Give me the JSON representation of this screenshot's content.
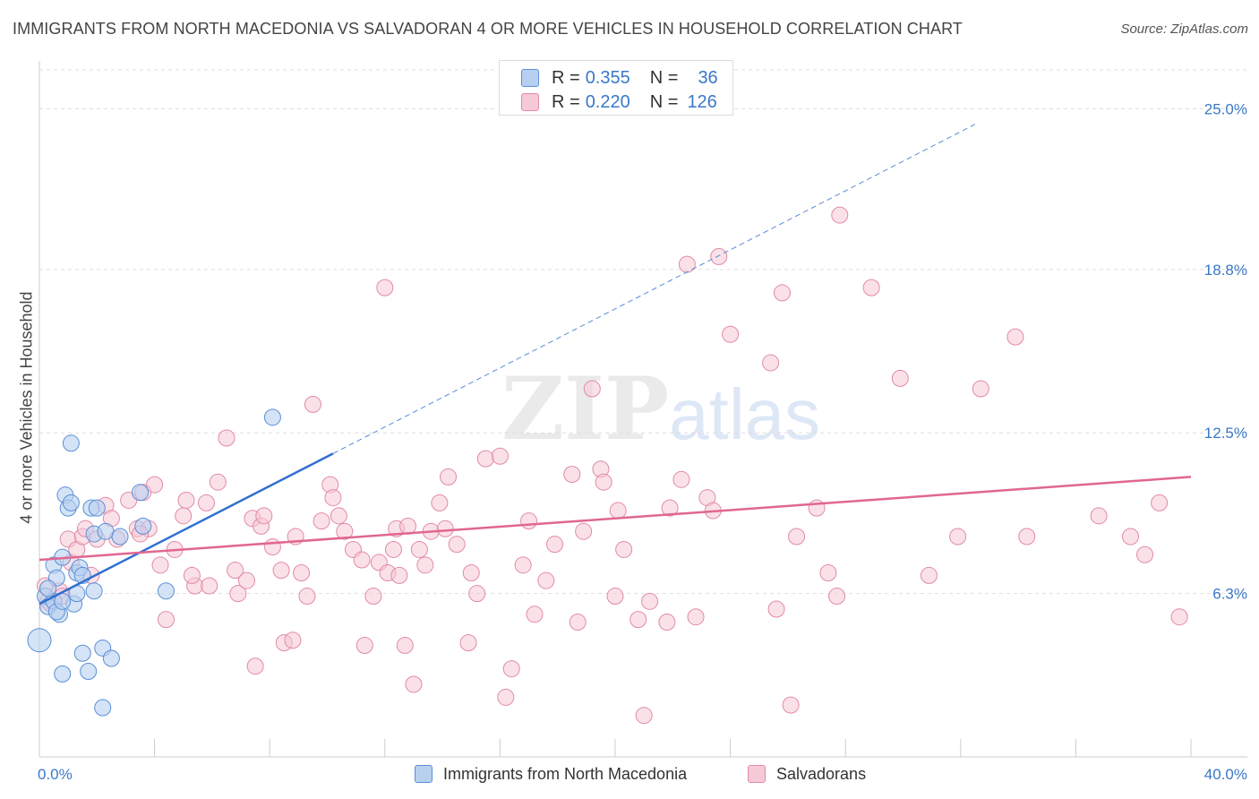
{
  "title": "IMMIGRANTS FROM NORTH MACEDONIA VS SALVADORAN 4 OR MORE VEHICLES IN HOUSEHOLD CORRELATION CHART",
  "source": "Source: ZipAtlas.com",
  "watermark": {
    "zip": "ZIP",
    "atlas": "atlas"
  },
  "legend": {
    "rows": [
      {
        "r_label": "R =",
        "r_value": "0.355",
        "n_label": "N =",
        "n_value": "36"
      },
      {
        "r_label": "R =",
        "r_value": "0.220",
        "n_label": "N =",
        "n_value": "126"
      }
    ]
  },
  "colors": {
    "blue_fill": "#b8d0f0",
    "blue_stroke": "#5b8fd6",
    "blue_line": "#2f6fd0",
    "pink_fill": "#f6c9d6",
    "pink_stroke": "#e28aa6",
    "pink_line": "#e0678f",
    "grid": "#dddddd",
    "tick_label": "#3a78c9"
  },
  "chart_data": {
    "type": "scatter",
    "title": "IMMIGRANTS FROM NORTH MACEDONIA VS SALVADORAN 4 OR MORE VEHICLES IN HOUSEHOLD CORRELATION CHART",
    "xlabel": "",
    "ylabel": "4 or more Vehicles in Household",
    "xlim": [
      0,
      40
    ],
    "ylim": [
      0,
      26.5
    ],
    "x_tick_labels": [
      {
        "value": 0,
        "label": "0.0%"
      },
      {
        "value": 40,
        "label": "40.0%"
      }
    ],
    "y_tick_labels": [
      {
        "value": 6.3,
        "label": "6.3%"
      },
      {
        "value": 12.5,
        "label": "12.5%"
      },
      {
        "value": 18.8,
        "label": "18.8%"
      },
      {
        "value": 25.0,
        "label": "25.0%"
      }
    ],
    "grid": true,
    "legend_position": "top-center",
    "series": [
      {
        "name": "Immigrants from North Macedonia",
        "color": "#b8d0f0",
        "trend": {
          "x": [
            0.0,
            10.2
          ],
          "y": [
            5.9,
            11.7
          ],
          "extend_to": [
            32.5,
            24.4
          ]
        },
        "points": [
          [
            0.0,
            4.5,
            13
          ],
          [
            0.2,
            6.2,
            9
          ],
          [
            0.3,
            5.8,
            9
          ],
          [
            0.5,
            6.0,
            9
          ],
          [
            0.5,
            7.4,
            9
          ],
          [
            0.6,
            6.9,
            9
          ],
          [
            0.7,
            5.5,
            9
          ],
          [
            0.8,
            7.7,
            9
          ],
          [
            0.9,
            10.1,
            9
          ],
          [
            1.0,
            9.6,
            9
          ],
          [
            1.1,
            9.8,
            9
          ],
          [
            1.1,
            12.1,
            9
          ],
          [
            1.2,
            5.9,
            9
          ],
          [
            1.3,
            7.1,
            9
          ],
          [
            1.3,
            6.3,
            9
          ],
          [
            1.4,
            7.3,
            9
          ],
          [
            1.5,
            7.0,
            9
          ],
          [
            1.5,
            4.0,
            9
          ],
          [
            1.8,
            9.6,
            9
          ],
          [
            1.9,
            8.6,
            9
          ],
          [
            1.9,
            6.4,
            9
          ],
          [
            2.0,
            9.6,
            9
          ],
          [
            2.2,
            4.2,
            9
          ],
          [
            2.2,
            1.9,
            9
          ],
          [
            2.3,
            8.7,
            9
          ],
          [
            2.5,
            3.8,
            9
          ],
          [
            2.8,
            8.5,
            9
          ],
          [
            3.5,
            10.2,
            9
          ],
          [
            3.6,
            8.9,
            9
          ],
          [
            4.4,
            6.4,
            9
          ],
          [
            8.1,
            13.1,
            9
          ],
          [
            0.8,
            3.2,
            9
          ],
          [
            1.7,
            3.3,
            9
          ],
          [
            0.3,
            6.5,
            9
          ],
          [
            0.6,
            5.6,
            9
          ],
          [
            0.8,
            6.0,
            9
          ]
        ]
      },
      {
        "name": "Salvadorans",
        "color": "#f6c9d6",
        "trend": {
          "x": [
            0.0,
            40.0
          ],
          "y": [
            7.6,
            10.8
          ]
        },
        "points": [
          [
            0.2,
            6.6,
            9
          ],
          [
            0.3,
            6.0,
            9
          ],
          [
            0.4,
            5.9,
            9
          ],
          [
            0.7,
            6.4,
            9
          ],
          [
            0.8,
            6.2,
            9
          ],
          [
            1.0,
            8.4,
            9
          ],
          [
            1.1,
            7.5,
            9
          ],
          [
            1.3,
            8.0,
            9
          ],
          [
            1.5,
            8.5,
            9
          ],
          [
            1.6,
            8.8,
            9
          ],
          [
            1.8,
            7.0,
            9
          ],
          [
            2.0,
            8.4,
            9
          ],
          [
            2.3,
            9.7,
            9
          ],
          [
            2.5,
            9.2,
            9
          ],
          [
            2.7,
            8.4,
            9
          ],
          [
            3.1,
            9.9,
            9
          ],
          [
            3.4,
            8.8,
            9
          ],
          [
            3.6,
            10.2,
            9
          ],
          [
            3.8,
            8.8,
            9
          ],
          [
            4.0,
            10.5,
            9
          ],
          [
            4.2,
            7.4,
            9
          ],
          [
            4.4,
            5.3,
            9
          ],
          [
            4.7,
            8.0,
            9
          ],
          [
            5.0,
            9.3,
            9
          ],
          [
            5.1,
            9.9,
            9
          ],
          [
            5.4,
            6.6,
            9
          ],
          [
            5.8,
            9.8,
            9
          ],
          [
            5.9,
            6.6,
            9
          ],
          [
            6.2,
            10.6,
            9
          ],
          [
            6.5,
            12.3,
            9
          ],
          [
            6.8,
            7.2,
            9
          ],
          [
            6.9,
            6.3,
            9
          ],
          [
            7.2,
            6.8,
            9
          ],
          [
            7.4,
            9.2,
            9
          ],
          [
            7.7,
            8.9,
            9
          ],
          [
            7.8,
            9.3,
            9
          ],
          [
            8.1,
            8.1,
            9
          ],
          [
            8.4,
            7.2,
            9
          ],
          [
            8.5,
            4.4,
            9
          ],
          [
            8.8,
            4.5,
            9
          ],
          [
            8.9,
            8.5,
            9
          ],
          [
            9.1,
            7.1,
            9
          ],
          [
            9.3,
            6.2,
            9
          ],
          [
            9.5,
            13.6,
            9
          ],
          [
            9.8,
            9.1,
            9
          ],
          [
            10.1,
            10.5,
            9
          ],
          [
            10.2,
            10.0,
            9
          ],
          [
            10.4,
            9.3,
            9
          ],
          [
            10.6,
            8.7,
            9
          ],
          [
            10.9,
            8.0,
            9
          ],
          [
            11.2,
            7.6,
            9
          ],
          [
            11.3,
            4.3,
            9
          ],
          [
            11.6,
            6.2,
            9
          ],
          [
            11.8,
            7.5,
            9
          ],
          [
            12.1,
            7.1,
            9
          ],
          [
            12.3,
            8.0,
            9
          ],
          [
            12.4,
            8.8,
            9
          ],
          [
            12.5,
            7.0,
            9
          ],
          [
            12.7,
            4.3,
            9
          ],
          [
            12.8,
            8.9,
            9
          ],
          [
            13.0,
            2.8,
            9
          ],
          [
            13.2,
            8.0,
            9
          ],
          [
            13.4,
            7.4,
            9
          ],
          [
            13.6,
            8.7,
            9
          ],
          [
            13.9,
            9.8,
            9
          ],
          [
            14.1,
            8.8,
            9
          ],
          [
            14.2,
            10.8,
            9
          ],
          [
            14.5,
            8.2,
            9
          ],
          [
            14.9,
            4.4,
            9
          ],
          [
            15.0,
            7.1,
            9
          ],
          [
            15.2,
            6.3,
            9
          ],
          [
            15.5,
            11.5,
            9
          ],
          [
            16.0,
            11.6,
            9
          ],
          [
            16.2,
            2.3,
            9
          ],
          [
            16.4,
            3.4,
            9
          ],
          [
            16.8,
            7.4,
            9
          ],
          [
            17.0,
            9.1,
            9
          ],
          [
            17.2,
            5.5,
            9
          ],
          [
            17.6,
            6.8,
            9
          ],
          [
            17.9,
            8.2,
            9
          ],
          [
            18.5,
            10.9,
            9
          ],
          [
            18.7,
            5.2,
            9
          ],
          [
            18.9,
            8.7,
            9
          ],
          [
            19.2,
            14.2,
            9
          ],
          [
            19.5,
            11.1,
            9
          ],
          [
            19.6,
            10.6,
            9
          ],
          [
            20.0,
            6.2,
            9
          ],
          [
            20.1,
            9.5,
            9
          ],
          [
            20.3,
            8.0,
            9
          ],
          [
            20.8,
            5.3,
            9
          ],
          [
            21.0,
            1.6,
            9
          ],
          [
            21.2,
            6.0,
            9
          ],
          [
            21.8,
            5.2,
            9
          ],
          [
            21.9,
            9.6,
            9
          ],
          [
            22.3,
            10.7,
            9
          ],
          [
            22.5,
            19.0,
            9
          ],
          [
            22.8,
            5.4,
            9
          ],
          [
            23.2,
            10.0,
            9
          ],
          [
            23.4,
            9.5,
            9
          ],
          [
            23.6,
            19.3,
            9
          ],
          [
            24.0,
            16.3,
            9
          ],
          [
            25.4,
            15.2,
            9
          ],
          [
            25.6,
            5.7,
            9
          ],
          [
            25.8,
            17.9,
            9
          ],
          [
            26.1,
            2.0,
            9
          ],
          [
            26.3,
            8.5,
            9
          ],
          [
            27.0,
            9.6,
            9
          ],
          [
            27.4,
            7.1,
            9
          ],
          [
            27.7,
            6.2,
            9
          ],
          [
            27.8,
            20.9,
            9
          ],
          [
            28.9,
            18.1,
            9
          ],
          [
            29.9,
            14.6,
            9
          ],
          [
            30.9,
            7.0,
            9
          ],
          [
            31.9,
            8.5,
            9
          ],
          [
            32.7,
            14.2,
            9
          ],
          [
            33.9,
            16.2,
            9
          ],
          [
            34.3,
            8.5,
            9
          ],
          [
            36.8,
            9.3,
            9
          ],
          [
            37.9,
            8.5,
            9
          ],
          [
            38.4,
            7.8,
            9
          ],
          [
            38.9,
            9.8,
            9
          ],
          [
            39.6,
            5.4,
            9
          ],
          [
            12.0,
            18.1,
            9
          ],
          [
            7.5,
            3.5,
            9
          ],
          [
            3.5,
            8.6,
            9
          ],
          [
            5.3,
            7.0,
            9
          ]
        ]
      }
    ]
  },
  "bottom_legend": [
    {
      "label": "Immigrants from North Macedonia"
    },
    {
      "label": "Salvadorans"
    }
  ]
}
